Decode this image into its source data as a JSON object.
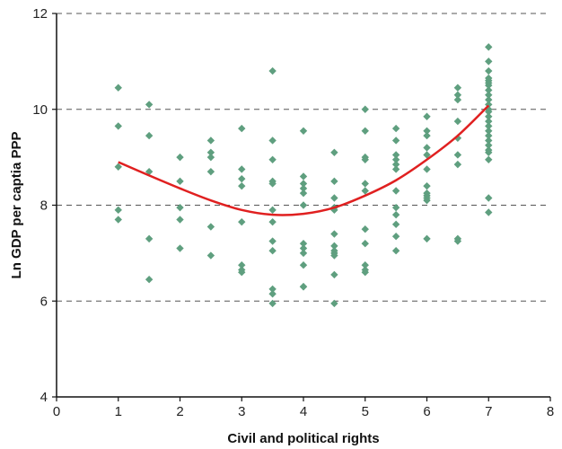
{
  "chart_data": {
    "type": "scatter",
    "xlabel": "Civil and political rights",
    "ylabel": "Ln GDP per captia PPP",
    "xlim": [
      0,
      8
    ],
    "ylim": [
      4,
      12
    ],
    "xticks": [
      "0",
      "1",
      "2",
      "3",
      "4",
      "5",
      "6",
      "7",
      "8"
    ],
    "yticks": [
      "4",
      "6",
      "8",
      "10",
      "12"
    ],
    "grid": "horizontal dashed at 6, 8, 10, 12",
    "colors": {
      "points": "#5f9f7f",
      "fit": "#e02020",
      "grid": "#555555",
      "axis": "#111111"
    },
    "series": [
      {
        "kind": "points",
        "x": [
          1,
          1,
          1,
          1,
          1,
          1.5,
          1.5,
          1.5,
          1.5,
          1.5,
          2,
          2,
          2,
          2,
          2,
          2.5,
          2.5,
          2.5,
          2.5,
          2.5,
          2.5,
          3,
          3,
          3,
          3,
          3,
          3,
          3,
          3,
          3.5,
          3.5,
          3.5,
          3.5,
          3.5,
          3.5,
          3.5,
          3.5,
          3.5,
          3.5,
          3.5,
          3.5,
          4,
          4,
          4,
          4,
          4,
          4,
          4,
          4,
          4,
          4,
          4,
          4,
          4.5,
          4.5,
          4.5,
          4.5,
          4.5,
          4.5,
          4.5,
          4.5,
          4.5,
          4.5,
          4.5,
          4.5,
          5,
          5,
          5,
          5,
          5,
          5,
          5,
          5,
          5,
          5,
          5,
          5.5,
          5.5,
          5.5,
          5.5,
          5.5,
          5.5,
          5.5,
          5.5,
          5.5,
          5.5,
          5.5,
          5.5,
          6,
          6,
          6,
          6,
          6,
          6,
          6,
          6,
          6,
          6,
          6,
          6,
          6.5,
          6.5,
          6.5,
          6.5,
          6.5,
          6.5,
          6.5,
          6.5,
          6.5,
          7,
          7,
          7,
          7,
          7,
          7,
          7,
          7,
          7,
          7,
          7,
          7,
          7,
          7,
          7,
          7,
          7,
          7,
          7,
          7,
          7,
          7,
          7,
          7,
          7
        ],
        "y": [
          10.45,
          9.65,
          8.8,
          7.9,
          7.7,
          10.1,
          9.45,
          8.7,
          7.3,
          6.45,
          9.0,
          8.5,
          7.95,
          7.7,
          7.1,
          9.35,
          9.1,
          9.0,
          8.7,
          7.55,
          6.95,
          9.6,
          8.75,
          8.55,
          8.4,
          7.65,
          6.75,
          6.65,
          6.6,
          10.8,
          9.35,
          8.95,
          8.5,
          8.45,
          7.9,
          7.65,
          7.25,
          7.05,
          6.25,
          6.15,
          5.95,
          9.55,
          8.6,
          8.45,
          8.35,
          8.25,
          8.0,
          7.2,
          7.1,
          7.0,
          6.75,
          6.3,
          6.3,
          9.1,
          8.5,
          8.15,
          7.95,
          7.9,
          7.4,
          7.15,
          7.05,
          7.0,
          6.95,
          6.55,
          5.95,
          10.0,
          9.55,
          9.0,
          8.95,
          8.45,
          8.3,
          7.5,
          7.2,
          6.75,
          6.65,
          6.6,
          9.6,
          9.35,
          9.05,
          8.95,
          8.85,
          8.75,
          8.3,
          7.95,
          7.8,
          7.6,
          7.35,
          7.05,
          9.85,
          9.55,
          9.45,
          9.2,
          9.05,
          8.75,
          8.4,
          8.25,
          8.2,
          8.15,
          8.1,
          7.3,
          10.45,
          10.3,
          10.2,
          9.75,
          9.4,
          9.05,
          8.85,
          7.3,
          7.25,
          11.3,
          11.0,
          10.8,
          10.6,
          10.5,
          10.4,
          10.3,
          10.2,
          10.1,
          10.0,
          9.95,
          9.85,
          9.75,
          9.65,
          9.55,
          9.45,
          9.35,
          9.25,
          9.15,
          9.1,
          8.95,
          8.15,
          7.85,
          10.65,
          10.55
        ]
      },
      {
        "kind": "quadratic-fit",
        "x": [
          1,
          1.5,
          2,
          2.5,
          3,
          3.5,
          4,
          4.5,
          5,
          5.5,
          6,
          6.5,
          7
        ],
        "y": [
          8.9,
          8.62,
          8.35,
          8.1,
          7.9,
          7.8,
          7.82,
          7.95,
          8.2,
          8.52,
          8.95,
          9.45,
          10.08
        ]
      }
    ]
  }
}
